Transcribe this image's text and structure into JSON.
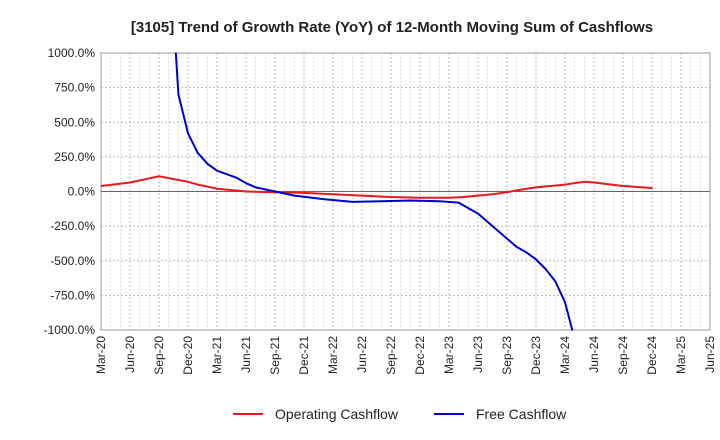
{
  "chart_data": {
    "type": "line",
    "title": "[3105]  Trend of Growth Rate (YoY) of 12-Month Moving Sum of Cashflows",
    "xlabel": "",
    "ylabel": "",
    "grid": true,
    "legend_position": "bottom",
    "categories": [
      "Mar-20",
      "Jun-20",
      "Sep-20",
      "Dec-20",
      "Mar-21",
      "Jun-21",
      "Sep-21",
      "Dec-21",
      "Mar-22",
      "Jun-22",
      "Sep-22",
      "Dec-22",
      "Mar-23",
      "Jun-23",
      "Sep-23",
      "Dec-23",
      "Mar-24",
      "Jun-24",
      "Sep-24",
      "Dec-24",
      "Mar-25",
      "Jun-25"
    ],
    "y_tick_labels": [
      "1000.0%",
      "750.0%",
      "500.0%",
      "250.0%",
      "0.0%",
      "-250.0%",
      "-500.0%",
      "-750.0%",
      "-1000.0%"
    ],
    "y_ticks": [
      1000,
      750,
      500,
      250,
      0,
      -250,
      -500,
      -750,
      -1000
    ],
    "ylim": [
      -1000,
      1000
    ],
    "series": [
      {
        "name": "Operating Cashflow",
        "color": "#e41a1c",
        "points": [
          [
            0,
            40
          ],
          [
            1,
            65
          ],
          [
            2,
            110
          ],
          [
            3,
            70
          ],
          [
            3.33,
            50
          ],
          [
            3.67,
            35
          ],
          [
            4,
            20
          ],
          [
            5,
            0
          ],
          [
            6,
            -5
          ],
          [
            7,
            -10
          ],
          [
            8,
            -20
          ],
          [
            9,
            -30
          ],
          [
            10,
            -40
          ],
          [
            11,
            -45
          ],
          [
            12,
            -45
          ],
          [
            12.5,
            -40
          ],
          [
            13,
            -30
          ],
          [
            13.5,
            -20
          ],
          [
            14,
            -5
          ],
          [
            14.67,
            20
          ],
          [
            15,
            30
          ],
          [
            16,
            50
          ],
          [
            16.67,
            70
          ],
          [
            17,
            65
          ],
          [
            18,
            40
          ],
          [
            19,
            25
          ]
        ]
      },
      {
        "name": "Free Cashflow",
        "color": "#0000cc",
        "points": [
          [
            2.58,
            1000
          ],
          [
            2.67,
            700
          ],
          [
            3,
            420
          ],
          [
            3.33,
            280
          ],
          [
            3.67,
            200
          ],
          [
            4,
            150
          ],
          [
            4.67,
            100
          ],
          [
            5,
            60
          ],
          [
            5.33,
            30
          ],
          [
            6,
            0
          ],
          [
            6.67,
            -30
          ],
          [
            7.67,
            -55
          ],
          [
            8.67,
            -75
          ],
          [
            9.67,
            -70
          ],
          [
            10.67,
            -65
          ],
          [
            11.67,
            -70
          ],
          [
            12.33,
            -80
          ],
          [
            13,
            -160
          ],
          [
            13.5,
            -250
          ],
          [
            14,
            -340
          ],
          [
            14.33,
            -400
          ],
          [
            14.67,
            -440
          ],
          [
            15,
            -490
          ],
          [
            15.33,
            -560
          ],
          [
            15.67,
            -650
          ],
          [
            16,
            -800
          ],
          [
            16.25,
            -1000
          ]
        ]
      }
    ]
  }
}
